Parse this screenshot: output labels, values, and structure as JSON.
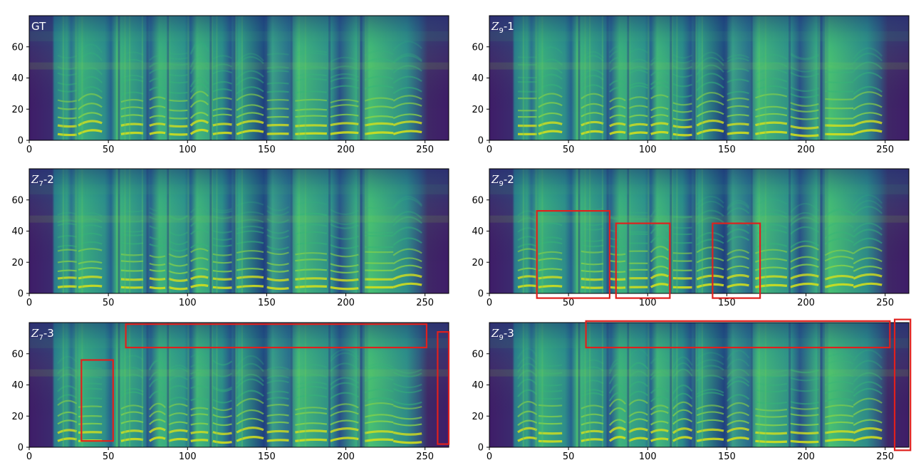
{
  "chart_data": {
    "type": "heatmap",
    "colormap": "viridis",
    "grid": false,
    "xlim": [
      0,
      265
    ],
    "ylim": [
      0,
      80
    ],
    "xticks": [
      0,
      50,
      100,
      150,
      200,
      250
    ],
    "yticks": [
      0,
      20,
      40,
      60
    ],
    "panels": [
      {
        "label": "GT",
        "highlight_boxes": []
      },
      {
        "label": "Z9-1",
        "label_main": "Z",
        "label_sub": "9",
        "label_suffix": "-1",
        "highlight_boxes": []
      },
      {
        "label": "Z7-2",
        "label_main": "Z",
        "label_sub": "7",
        "label_suffix": "-2",
        "highlight_boxes": []
      },
      {
        "label": "Z9-2",
        "label_main": "Z",
        "label_sub": "9",
        "label_suffix": "-2",
        "highlight_boxes": [
          {
            "x": [
              30,
              76
            ],
            "y": [
              -3,
              53
            ]
          },
          {
            "x": [
              80,
              114
            ],
            "y": [
              -3,
              45
            ]
          },
          {
            "x": [
              141,
              171
            ],
            "y": [
              -3,
              45
            ]
          }
        ]
      },
      {
        "label": "Z7-3",
        "label_main": "Z",
        "label_sub": "7",
        "label_suffix": "-3",
        "highlight_boxes": [
          {
            "x": [
              33,
              53
            ],
            "y": [
              4,
              56
            ]
          },
          {
            "x": [
              61,
              251
            ],
            "y": [
              64,
              79
            ]
          },
          {
            "x": [
              258,
              265
            ],
            "y": [
              2,
              74
            ]
          }
        ]
      },
      {
        "label": "Z9-3",
        "label_main": "Z",
        "label_sub": "9",
        "label_suffix": "-3",
        "highlight_boxes": [
          {
            "x": [
              61,
              253
            ],
            "y": [
              64,
              81
            ]
          },
          {
            "x": [
              256,
              266
            ],
            "y": [
              -2,
              82
            ]
          }
        ]
      }
    ]
  }
}
